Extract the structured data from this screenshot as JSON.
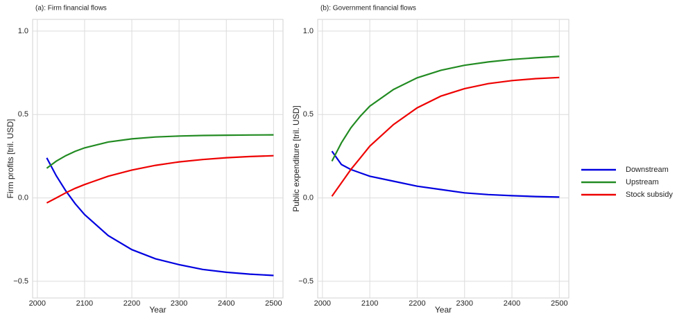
{
  "chart_data": [
    {
      "type": "line",
      "title": "(a): Firm financial flows",
      "x_label": "Year",
      "y_label": "Firm profits [tril. USD]",
      "x": [
        2020,
        2040,
        2060,
        2080,
        2100,
        2150,
        2200,
        2250,
        2300,
        2350,
        2400,
        2450,
        2500
      ],
      "xlim": [
        1990,
        2520
      ],
      "xticks": [
        2000,
        2100,
        2200,
        2300,
        2400,
        2500
      ],
      "ylim": [
        -0.6,
        1.07
      ],
      "yticks": [
        {
          "value": -0.5,
          "label": "−0.5"
        },
        {
          "value": 0,
          "label": "0.0"
        },
        0.5,
        {
          "value": 1,
          "label": "1.0"
        }
      ],
      "grid": true,
      "series": [
        {
          "name": "Downstream",
          "color": "#0000e0",
          "values": [
            0.24,
            0.133,
            0.043,
            -0.034,
            -0.1,
            -0.226,
            -0.31,
            -0.365,
            -0.4,
            -0.429,
            -0.446,
            -0.457,
            -0.465
          ]
        },
        {
          "name": "Upstream",
          "color": "#228b22",
          "values": [
            0.178,
            0.22,
            0.253,
            0.279,
            0.3,
            0.335,
            0.354,
            0.365,
            0.371,
            0.374,
            0.376,
            0.377,
            0.378
          ]
        },
        {
          "name": "Stock subsidy",
          "color": "#ee0000",
          "values": [
            -0.03,
            0.0,
            0.03,
            0.057,
            0.08,
            0.13,
            0.167,
            0.195,
            0.216,
            0.23,
            0.241,
            0.248,
            0.253
          ]
        }
      ]
    },
    {
      "type": "line",
      "title": "(b): Government financial flows",
      "x_label": "Year",
      "y_label": "Public expenditure [tril. USD]",
      "x": [
        2020,
        2040,
        2060,
        2080,
        2100,
        2150,
        2200,
        2250,
        2300,
        2350,
        2400,
        2450,
        2500
      ],
      "xlim": [
        1990,
        2520
      ],
      "xticks": [
        2000,
        2100,
        2200,
        2300,
        2400,
        2500
      ],
      "ylim": [
        -0.6,
        1.07
      ],
      "yticks": [
        {
          "value": -0.5,
          "label": "−0.5"
        },
        {
          "value": 0,
          "label": "0.0"
        },
        0.5,
        {
          "value": 1,
          "label": "1.0"
        }
      ],
      "grid": true,
      "series": [
        {
          "color": "#0000e0",
          "values": [
            0.28,
            0.2,
            0.17,
            0.15,
            0.13,
            0.1,
            0.07,
            0.05,
            0.03,
            0.02,
            0.013,
            0.008,
            0.005
          ]
        },
        {
          "color": "#228b22",
          "values": [
            0.22,
            0.33,
            0.42,
            0.49,
            0.55,
            0.65,
            0.72,
            0.765,
            0.795,
            0.815,
            0.83,
            0.84,
            0.848
          ]
        },
        {
          "color": "#ee0000",
          "values": [
            0.01,
            0.09,
            0.17,
            0.24,
            0.31,
            0.44,
            0.54,
            0.61,
            0.655,
            0.685,
            0.703,
            0.715,
            0.722
          ]
        }
      ]
    }
  ]
}
